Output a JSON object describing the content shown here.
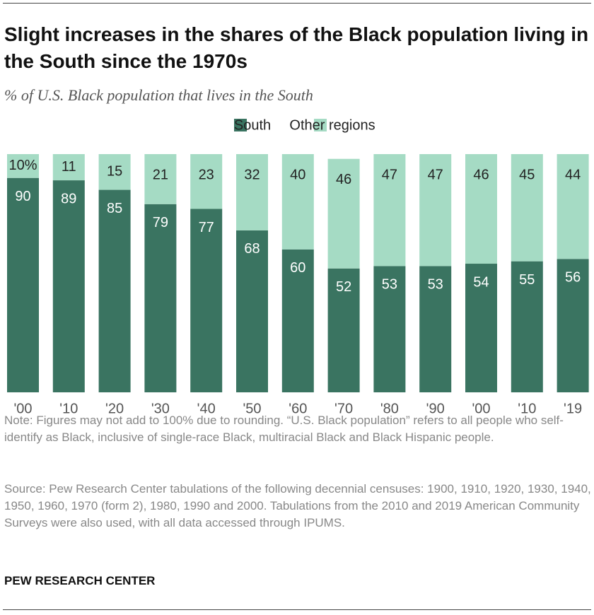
{
  "chart_data": {
    "type": "stacked-bar",
    "title": "Slight increases in the shares of the Black population living in the South since the 1970s",
    "subtitle": "% of U.S. Black population that lives in the South",
    "categories": [
      "'00",
      "'10",
      "'20",
      "'30",
      "'40",
      "'50",
      "'60",
      "'70",
      "'80",
      "'90",
      "'00",
      "'10",
      "'19"
    ],
    "series": [
      {
        "name": "South",
        "color": "#3a7461",
        "values": [
          90,
          89,
          85,
          79,
          77,
          68,
          60,
          52,
          53,
          53,
          54,
          55,
          56
        ]
      },
      {
        "name": "Other regions",
        "color": "#a5dbc4",
        "values": [
          10,
          11,
          15,
          21,
          23,
          32,
          40,
          46,
          47,
          47,
          46,
          45,
          44
        ],
        "value_labels": [
          "10%",
          "11",
          "15",
          "21",
          "23",
          "32",
          "40",
          "46",
          "47",
          "47",
          "46",
          "45",
          "44"
        ]
      }
    ],
    "ylim": [
      0,
      100
    ],
    "legend": "top",
    "note": "Note: Figures may not add to 100% due to rounding. “U.S. Black population” refers to all people who self-identify as Black, inclusive of single-race Black, multiracial Black and Black Hispanic people.",
    "source": "Source: Pew Research Center tabulations of the following decennial censuses: 1900, 1910, 1920, 1930, 1940, 1950, 1960, 1970 (form 2), 1980, 1990 and 2000. Tabulations from the 2010 and 2019 American Community Surveys were also used, with all data accessed through IPUMS.",
    "credit": "PEW RESEARCH CENTER"
  }
}
